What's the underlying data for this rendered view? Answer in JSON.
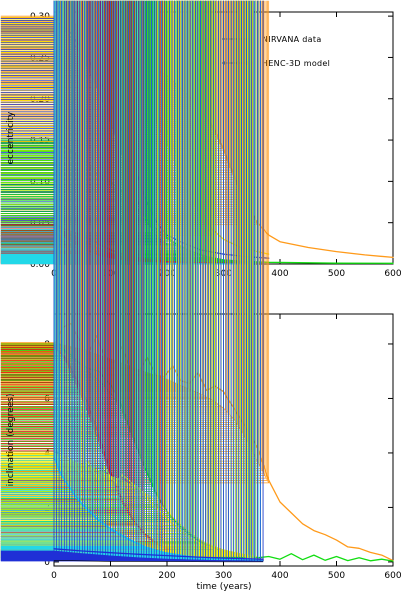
{
  "chart_data": [
    {
      "type": "line",
      "xlabel": "",
      "ylabel": "eccentricity",
      "xlim": [
        0,
        600
      ],
      "ylim": [
        0,
        0.305
      ],
      "xticks": [
        "0",
        "100",
        "200",
        "300",
        "400",
        "500",
        "600"
      ],
      "yticks": [
        "0.00",
        "0.05",
        "0.10",
        "0.15",
        "0.20",
        "0.25",
        "0.30"
      ],
      "legend": {
        "placement": "top-right",
        "entries": [
          {
            "label": "NIRVANA data",
            "style": "line"
          },
          {
            "label": "HENC-3D model",
            "style": "crosses"
          }
        ]
      },
      "series": [
        {
          "color": "#ff9a1a",
          "x": [
            0,
            50,
            100,
            150,
            200,
            250,
            280,
            300,
            320,
            340,
            360,
            380,
            400,
            450,
            500,
            550,
            600
          ],
          "y": [
            0.3,
            0.287,
            0.266,
            0.248,
            0.228,
            0.196,
            0.168,
            0.14,
            0.105,
            0.075,
            0.05,
            0.035,
            0.027,
            0.02,
            0.015,
            0.011,
            0.008
          ]
        },
        {
          "color": "#ff9a1a",
          "style": "crosses",
          "x": [
            0,
            50,
            100,
            150,
            200,
            250,
            280,
            300,
            320,
            340,
            360
          ],
          "y": [
            0.3,
            0.285,
            0.264,
            0.246,
            0.225,
            0.193,
            0.165,
            0.137,
            0.102,
            0.072,
            0.048
          ]
        },
        {
          "color": "#ffee00",
          "x": [
            0,
            40,
            80,
            120,
            160,
            200,
            230,
            260,
            280,
            300,
            330,
            360,
            380
          ],
          "y": [
            0.298,
            0.284,
            0.266,
            0.243,
            0.212,
            0.162,
            0.112,
            0.065,
            0.042,
            0.03,
            0.02,
            0.015,
            0.012
          ]
        },
        {
          "color": "#ffee00",
          "style": "crosses",
          "x": [
            0,
            40,
            80,
            120,
            160,
            200,
            230,
            260,
            280
          ],
          "y": [
            0.298,
            0.279,
            0.258,
            0.232,
            0.198,
            0.146,
            0.095,
            0.055,
            0.035
          ]
        },
        {
          "color": "#1f2fd6",
          "x": [
            0,
            30,
            60,
            90,
            120,
            140,
            160,
            180,
            200,
            230,
            260,
            300,
            340,
            380
          ],
          "y": [
            0.297,
            0.279,
            0.249,
            0.21,
            0.162,
            0.122,
            0.082,
            0.052,
            0.035,
            0.025,
            0.017,
            0.012,
            0.009,
            0.007
          ]
        },
        {
          "color": "#1f2fd6",
          "style": "crosses",
          "x": [
            0,
            30,
            60,
            90,
            120,
            140,
            160,
            180,
            200
          ],
          "y": [
            0.297,
            0.274,
            0.237,
            0.19,
            0.132,
            0.09,
            0.055,
            0.035,
            0.024
          ]
        },
        {
          "color": "#11dd11",
          "x": [
            0,
            30,
            60,
            90,
            120,
            150,
            180,
            210,
            240,
            270,
            300,
            340,
            380,
            450,
            500,
            600
          ],
          "y": [
            0.151,
            0.138,
            0.122,
            0.105,
            0.088,
            0.065,
            0.043,
            0.027,
            0.016,
            0.009,
            0.005,
            0.003,
            0.002,
            0.0015,
            0.001,
            0.0008
          ]
        },
        {
          "color": "#11dd11",
          "style": "crosses",
          "x": [
            0,
            30,
            60,
            90,
            120,
            150,
            180,
            210,
            240,
            270,
            300,
            340,
            370
          ],
          "y": [
            0.151,
            0.136,
            0.119,
            0.101,
            0.084,
            0.061,
            0.04,
            0.025,
            0.015,
            0.008,
            0.004,
            0.002,
            0.0015
          ]
        },
        {
          "color": "#e01010",
          "x": [
            0,
            20,
            40,
            60,
            80,
            100,
            130,
            160,
            200,
            250,
            300,
            350
          ],
          "y": [
            0.049,
            0.042,
            0.037,
            0.031,
            0.024,
            0.017,
            0.01,
            0.006,
            0.003,
            0.0015,
            0.0008,
            0.0004
          ]
        },
        {
          "color": "#e01010",
          "style": "crosses",
          "x": [
            0,
            20,
            40,
            60,
            80,
            100,
            130,
            160,
            200,
            250,
            300,
            350
          ],
          "y": [
            0.048,
            0.039,
            0.033,
            0.026,
            0.019,
            0.013,
            0.008,
            0.005,
            0.0025,
            0.0012,
            0.0006,
            0.0003
          ]
        },
        {
          "color": "#22d8e8",
          "x": [
            0,
            20,
            40,
            60,
            80,
            100,
            130,
            160,
            200,
            250,
            300,
            350
          ],
          "y": [
            0.045,
            0.03,
            0.021,
            0.014,
            0.009,
            0.006,
            0.003,
            0.0015,
            0.0008,
            0.0004,
            0.0002,
            0.0001
          ]
        },
        {
          "color": "#22d8e8",
          "style": "crosses",
          "x": [
            0,
            20,
            40,
            60,
            80,
            100,
            130,
            160,
            200,
            250,
            300,
            350
          ],
          "y": [
            0.044,
            0.028,
            0.019,
            0.012,
            0.008,
            0.005,
            0.0025,
            0.0012,
            0.0006,
            0.0003,
            0.0002,
            0.0001
          ]
        }
      ]
    },
    {
      "type": "line",
      "xlabel": "time (years)",
      "ylabel": "inclination (degrees)",
      "xlim": [
        0,
        600
      ],
      "ylim": [
        -0.15,
        9.1
      ],
      "xticks": [
        "0",
        "100",
        "200",
        "300",
        "400",
        "500",
        "600"
      ],
      "yticks": [
        "0",
        "2",
        "4",
        "6",
        "8"
      ],
      "series": [
        {
          "color": "#ff9a1a",
          "x": [
            0,
            15,
            30,
            45,
            60,
            75,
            90,
            105,
            120,
            135,
            150,
            165,
            180,
            195,
            210,
            225,
            240,
            255,
            270,
            285,
            300,
            315,
            330,
            345,
            360,
            370,
            380,
            400,
            420,
            440,
            460,
            480,
            500,
            520,
            540,
            560,
            580,
            600
          ],
          "y": [
            7.95,
            8.6,
            8.75,
            8.15,
            7.6,
            8.3,
            7.5,
            7.3,
            7.9,
            7.1,
            7.0,
            7.5,
            6.85,
            6.8,
            7.2,
            6.65,
            6.55,
            6.95,
            6.3,
            6.45,
            6.25,
            5.75,
            5.25,
            4.75,
            4.2,
            3.6,
            3.0,
            2.2,
            1.8,
            1.4,
            1.15,
            1.0,
            0.8,
            0.55,
            0.5,
            0.35,
            0.25,
            0.05
          ]
        },
        {
          "color": "#ff9a1a",
          "style": "crosses",
          "x": [
            0,
            50,
            100,
            150,
            200,
            250,
            280,
            300,
            320,
            340,
            360,
            380
          ],
          "y": [
            8.05,
            7.8,
            7.45,
            7.05,
            6.7,
            6.25,
            5.95,
            5.65,
            5.2,
            4.5,
            3.7,
            2.9
          ]
        },
        {
          "color": "#11dd11",
          "x": [
            0,
            10,
            20,
            30,
            45,
            60,
            70,
            80,
            90,
            100,
            110,
            120,
            140,
            160,
            180,
            200,
            220,
            240,
            260,
            280,
            300,
            330,
            360,
            380,
            400,
            420,
            440,
            460,
            480,
            500,
            520,
            540,
            560,
            580,
            600
          ],
          "y": [
            7.95,
            8.0,
            7.75,
            7.6,
            7.3,
            7.1,
            7.05,
            7.0,
            6.7,
            6.5,
            6.15,
            5.7,
            4.6,
            3.5,
            2.55,
            1.85,
            1.35,
            1.0,
            0.7,
            0.5,
            0.35,
            0.22,
            0.15,
            0.2,
            0.1,
            0.3,
            0.08,
            0.25,
            0.06,
            0.2,
            0.05,
            0.15,
            0.04,
            0.1,
            0.03
          ]
        },
        {
          "color": "#11dd11",
          "style": "crosses",
          "x": [
            0,
            20,
            40,
            60,
            80,
            100,
            120,
            140,
            160,
            180,
            200,
            220,
            240,
            260,
            280,
            300,
            330,
            360
          ],
          "y": [
            8.0,
            7.7,
            7.35,
            7.0,
            6.65,
            6.2,
            5.55,
            4.5,
            3.45,
            2.5,
            1.85,
            1.4,
            1.05,
            0.75,
            0.55,
            0.4,
            0.25,
            0.15
          ]
        },
        {
          "color": "#e01010",
          "x": [
            0,
            20,
            40,
            60,
            80,
            100,
            120,
            140,
            160,
            180,
            200,
            230,
            260,
            300,
            340,
            370
          ],
          "y": [
            7.9,
            7.5,
            6.7,
            5.8,
            4.6,
            3.3,
            2.3,
            1.55,
            1.05,
            0.7,
            0.5,
            0.3,
            0.2,
            0.12,
            0.08,
            0.06
          ]
        },
        {
          "color": "#e01010",
          "style": "crosses",
          "x": [
            0,
            20,
            40,
            60,
            80,
            100,
            120,
            140,
            160,
            180,
            200,
            230,
            260,
            300,
            340,
            370
          ],
          "y": [
            7.95,
            7.4,
            6.5,
            5.5,
            4.35,
            3.15,
            2.2,
            1.5,
            1.0,
            0.68,
            0.48,
            0.3,
            0.2,
            0.12,
            0.08,
            0.06
          ]
        },
        {
          "color": "#ffee00",
          "x": [
            0,
            10,
            20,
            30,
            40,
            50,
            60,
            70,
            80,
            90,
            100,
            110,
            120,
            130,
            140,
            150,
            160,
            170,
            180,
            200,
            220,
            240,
            260,
            280,
            300,
            320,
            340,
            360,
            370
          ],
          "y": [
            3.95,
            3.6,
            3.3,
            3.75,
            3.45,
            3.15,
            3.7,
            3.3,
            3.0,
            3.5,
            3.1,
            2.9,
            3.2,
            3.05,
            2.85,
            2.7,
            2.5,
            2.2,
            2.0,
            1.6,
            1.2,
            0.9,
            0.65,
            0.5,
            0.35,
            0.25,
            0.18,
            0.12,
            0.1
          ]
        },
        {
          "color": "#ffee00",
          "style": "crosses",
          "x": [
            0,
            20,
            40,
            60,
            80,
            100,
            120,
            140,
            160,
            180,
            200,
            220,
            240,
            260,
            280,
            300,
            330,
            360
          ],
          "y": [
            4.0,
            3.85,
            3.65,
            3.5,
            3.35,
            3.15,
            3.0,
            2.8,
            2.55,
            2.25,
            1.85,
            1.45,
            1.1,
            0.8,
            0.6,
            0.45,
            0.3,
            0.2
          ]
        },
        {
          "color": "#22d8e8",
          "x": [
            0,
            10,
            20,
            30,
            40,
            50,
            60,
            80,
            100,
            120,
            140,
            160,
            180,
            200,
            230,
            260,
            300,
            340,
            370
          ],
          "y": [
            3.85,
            3.3,
            2.95,
            2.65,
            2.35,
            2.1,
            1.9,
            1.5,
            1.2,
            0.95,
            0.75,
            0.55,
            0.42,
            0.32,
            0.22,
            0.15,
            0.1,
            0.07,
            0.05
          ]
        },
        {
          "color": "#22d8e8",
          "style": "crosses",
          "x": [
            0,
            10,
            20,
            30,
            40,
            50,
            60,
            80,
            100,
            120,
            140,
            160,
            180,
            200,
            230,
            260,
            300,
            340,
            370
          ],
          "y": [
            3.9,
            3.35,
            3.0,
            2.7,
            2.4,
            2.15,
            1.95,
            1.55,
            1.25,
            1.0,
            0.78,
            0.58,
            0.45,
            0.34,
            0.24,
            0.16,
            0.11,
            0.08,
            0.06
          ]
        },
        {
          "color": "#1f2fd6",
          "x": [
            0,
            50,
            100,
            150,
            200,
            250,
            300,
            350,
            370
          ],
          "y": [
            0.48,
            0.4,
            0.34,
            0.28,
            0.23,
            0.18,
            0.14,
            0.11,
            0.1
          ]
        },
        {
          "color": "#1f2fd6",
          "style": "crosses",
          "x": [
            0,
            50,
            100,
            150,
            200,
            250,
            300,
            350,
            370
          ],
          "y": [
            0.4,
            0.3,
            0.22,
            0.15,
            0.1,
            0.07,
            0.05,
            0.04,
            0.035
          ]
        },
        {
          "color": "#000000",
          "x": [
            0,
            100,
            200,
            300,
            370
          ],
          "y": [
            0.06,
            0.02,
            0.01,
            0.005,
            0.003
          ]
        }
      ]
    }
  ]
}
